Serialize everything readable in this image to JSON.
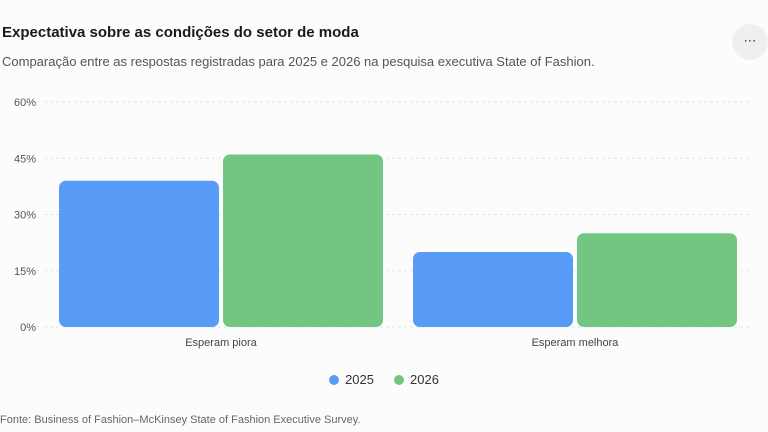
{
  "header": {
    "title": "Expectativa sobre as condições do setor de moda",
    "subtitle": "Comparação entre as respostas registradas para 2025 e 2026 na pesquisa executiva State of Fashion.",
    "menu_label": "⋯",
    "menu_icon": "more-horizontal-icon"
  },
  "chart_data": {
    "type": "bar",
    "title": "Expectativa sobre as condições do setor de moda",
    "subtitle": "Comparação entre as respostas registradas para 2025 e 2026 na pesquisa executiva State of Fashion.",
    "categories": [
      "Esperam piora",
      "Esperam melhora"
    ],
    "series": [
      {
        "name": "2025",
        "values": [
          39,
          20
        ],
        "color": "#589cf7"
      },
      {
        "name": "2026",
        "values": [
          46,
          25
        ],
        "color": "#72c682"
      }
    ],
    "ylim": [
      0,
      60
    ],
    "yticks": [
      0,
      15,
      30,
      45,
      60
    ],
    "ytick_format": "percent",
    "xlabel": "",
    "ylabel": "",
    "grid": true,
    "legend_position": "bottom"
  },
  "source": "Fonte: Business of Fashion–McKinsey State of Fashion Executive Survey."
}
